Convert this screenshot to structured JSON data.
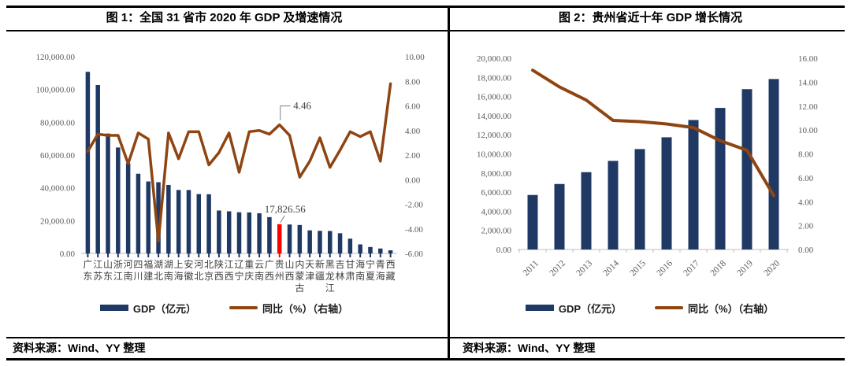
{
  "colors": {
    "bar": "#1F3864",
    "line": "#8F4511",
    "highlight": "#FF0000",
    "axis_text": "#595959",
    "leader": "#7F7F7F",
    "baseline": "#BFBFBF",
    "border": "#000000"
  },
  "chart_data": [
    {
      "type": "bar",
      "combo": "bar+line",
      "title": "图 1：全国 31 省市 2020 年 GDP 及增速情况",
      "source": "资料来源：Wind、YY 整理",
      "categories": [
        "广东",
        "江苏",
        "山东",
        "浙江",
        "河南",
        "四川",
        "福建",
        "湖北",
        "湖南",
        "上海",
        "安徽",
        "河北",
        "北京",
        "陕西",
        "江西",
        "辽宁",
        "重庆",
        "云南",
        "广西",
        "贵州",
        "山西",
        "内蒙古",
        "天津",
        "新疆",
        "黑龙江",
        "吉林",
        "甘肃",
        "海南",
        "宁夏",
        "青海",
        "西藏"
      ],
      "series": [
        {
          "name": "GDP（亿元）",
          "type": "bar",
          "axis": "left",
          "values": [
            110760.94,
            102718.98,
            73129.0,
            64613.34,
            54997.07,
            48598.76,
            43903.89,
            43443.46,
            41781.49,
            38700.58,
            38680.63,
            36206.89,
            36102.55,
            26181.86,
            25691.5,
            25115.0,
            25002.79,
            24521.9,
            22156.69,
            17826.56,
            17651.93,
            17359.82,
            14083.73,
            13797.58,
            13698.5,
            12311.32,
            9016.7,
            5532.39,
            3920.55,
            3005.92,
            1902.74
          ]
        },
        {
          "name": "同比（%）（右轴）",
          "type": "line",
          "axis": "right",
          "values": [
            2.3,
            3.7,
            3.6,
            3.6,
            1.3,
            3.8,
            3.3,
            -5.0,
            3.8,
            1.7,
            3.9,
            3.9,
            1.2,
            2.2,
            3.8,
            0.6,
            3.9,
            4.0,
            3.7,
            4.46,
            3.6,
            0.2,
            1.5,
            3.4,
            1.0,
            2.4,
            3.9,
            3.5,
            3.9,
            1.5,
            7.8
          ]
        }
      ],
      "highlight": {
        "index": 19,
        "category": "贵州",
        "color": "#FF0000"
      },
      "axes": {
        "left": {
          "min": 0,
          "max": 120000,
          "step": 20000
        },
        "right": {
          "min": -6,
          "max": 10,
          "step": 2
        }
      },
      "annotations": [
        {
          "text": "4.46",
          "series": "line",
          "index": 19
        },
        {
          "text": "17,826.56",
          "series": "bar",
          "index": 19
        }
      ],
      "layout_hints": {
        "grid": false,
        "legend_position": "bottom",
        "category_labels": "vertical"
      }
    },
    {
      "type": "bar",
      "combo": "bar+line",
      "title": "图 2：贵州省近十年 GDP 增长情况",
      "source": "资料来源：Wind、YY 整理",
      "categories": [
        "2011",
        "2012",
        "2013",
        "2014",
        "2015",
        "2016",
        "2017",
        "2018",
        "2019",
        "2020"
      ],
      "series": [
        {
          "name": "GDP（亿元）",
          "type": "bar",
          "axis": "left",
          "values": [
            5701.84,
            6852.2,
            8086.86,
            9266.39,
            10502.56,
            11734.43,
            13540.83,
            14806.45,
            16769.34,
            17826.56
          ]
        },
        {
          "name": "同比（%）（右轴）",
          "type": "line",
          "axis": "right",
          "values": [
            15.0,
            13.6,
            12.5,
            10.8,
            10.7,
            10.5,
            10.2,
            9.1,
            8.3,
            4.5
          ]
        }
      ],
      "axes": {
        "left": {
          "min": 0,
          "max": 20000,
          "step": 2000
        },
        "right": {
          "min": 0,
          "max": 16,
          "step": 2
        }
      },
      "annotations": [],
      "layout_hints": {
        "grid": false,
        "legend_position": "bottom",
        "category_labels": "angled-45"
      }
    }
  ]
}
